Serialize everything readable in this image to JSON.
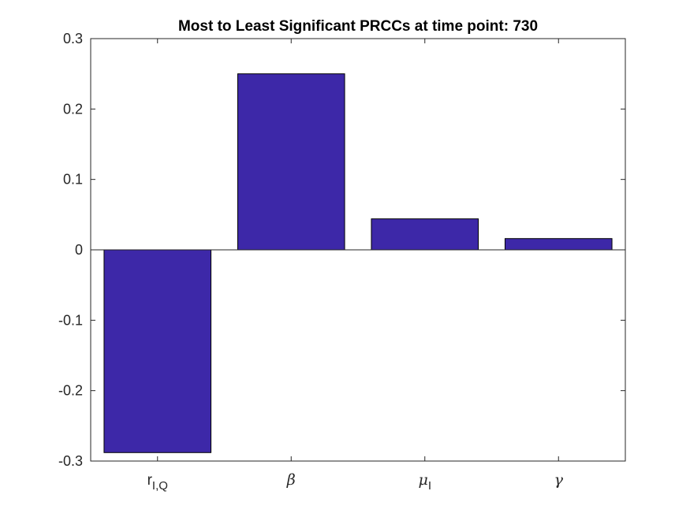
{
  "chart_data": {
    "type": "bar",
    "title": "Most to Least Significant PRCCs at time point: 730",
    "xlabel": "",
    "ylabel": "",
    "categories": [
      "r_I,Q",
      "β",
      "μ_I",
      "γ"
    ],
    "category_labels": [
      {
        "main": "r",
        "sub": "I,Q",
        "italic": false
      },
      {
        "main": "β",
        "sub": "",
        "italic": true
      },
      {
        "main": "μ",
        "sub": "I",
        "italic": true
      },
      {
        "main": "γ",
        "sub": "",
        "italic": true
      }
    ],
    "values": [
      -0.288,
      0.25,
      0.044,
      0.016
    ],
    "ylim": [
      -0.3,
      0.3
    ],
    "yticks": [
      -0.3,
      -0.2,
      -0.1,
      0,
      0.1,
      0.2,
      0.3
    ],
    "ytick_labels": [
      "-0.3",
      "-0.2",
      "-0.1",
      "0",
      "0.1",
      "0.2",
      "0.3"
    ],
    "grid": false,
    "bar_color": "#3d28a8",
    "edge_color": "#000000",
    "baseline": 0
  }
}
